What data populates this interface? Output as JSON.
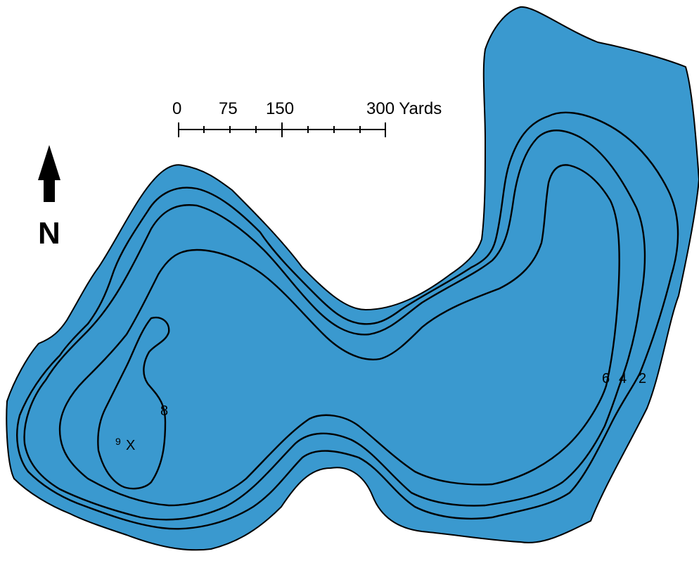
{
  "colors": {
    "water": "#3a99cf",
    "line": "#000000"
  },
  "scale_bar": {
    "labels": [
      {
        "text": "0"
      },
      {
        "text": "75"
      },
      {
        "text": "150"
      },
      {
        "text": "300 Yards"
      }
    ]
  },
  "north_arrow": {
    "label": "N",
    "icon": "north-arrow-icon"
  },
  "contours": {
    "labels": [
      "6",
      "4",
      "2",
      "8"
    ]
  },
  "deepest_point": {
    "depth": "9",
    "marker": "X"
  }
}
